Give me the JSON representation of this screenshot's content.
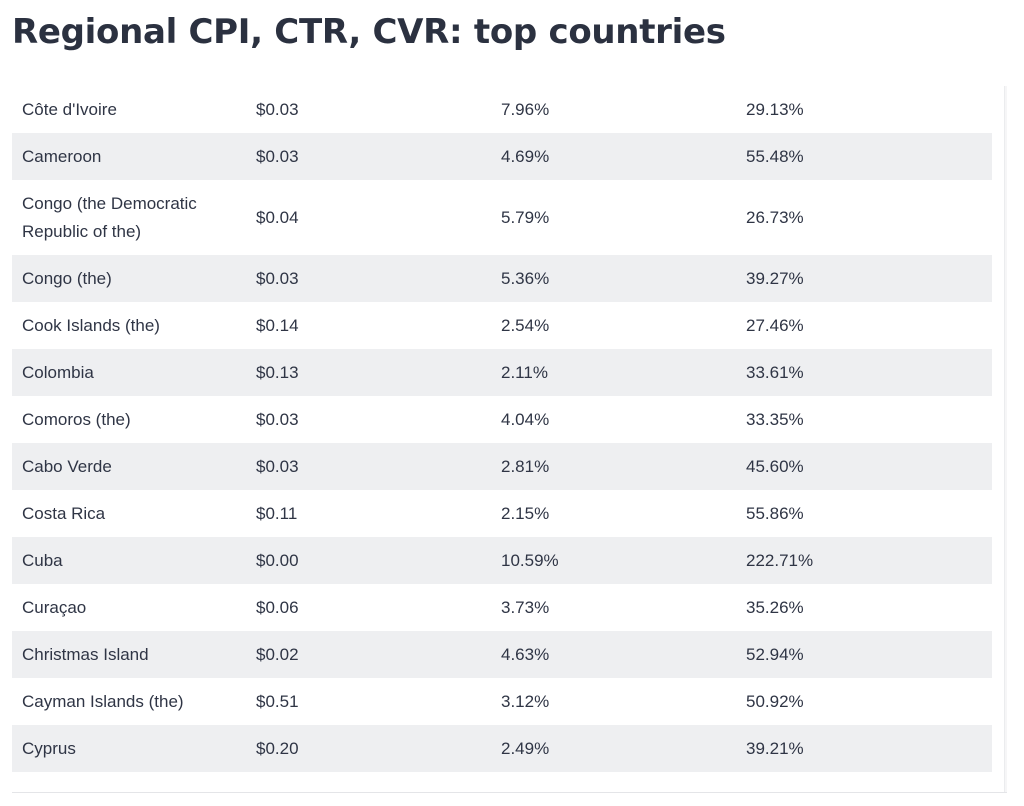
{
  "title": "Regional CPI, CTR, CVR: top countries",
  "rows": [
    {
      "country": "Côte d'Ivoire",
      "cpi": "$0.03",
      "ctr": "7.96%",
      "cvr": "29.13%"
    },
    {
      "country": "Cameroon",
      "cpi": "$0.03",
      "ctr": "4.69%",
      "cvr": "55.48%"
    },
    {
      "country": "Congo (the Democratic Republic of the)",
      "cpi": "$0.04",
      "ctr": "5.79%",
      "cvr": "26.73%"
    },
    {
      "country": "Congo (the)",
      "cpi": "$0.03",
      "ctr": "5.36%",
      "cvr": "39.27%"
    },
    {
      "country": "Cook Islands (the)",
      "cpi": "$0.14",
      "ctr": "2.54%",
      "cvr": "27.46%"
    },
    {
      "country": "Colombia",
      "cpi": "$0.13",
      "ctr": "2.11%",
      "cvr": "33.61%"
    },
    {
      "country": "Comoros (the)",
      "cpi": "$0.03",
      "ctr": "4.04%",
      "cvr": "33.35%"
    },
    {
      "country": "Cabo Verde",
      "cpi": "$0.03",
      "ctr": "2.81%",
      "cvr": "45.60%"
    },
    {
      "country": "Costa Rica",
      "cpi": "$0.11",
      "ctr": "2.15%",
      "cvr": "55.86%"
    },
    {
      "country": "Cuba",
      "cpi": "$0.00",
      "ctr": "10.59%",
      "cvr": "222.71%"
    },
    {
      "country": "Curaçao",
      "cpi": "$0.06",
      "ctr": "3.73%",
      "cvr": "35.26%"
    },
    {
      "country": "Christmas Island",
      "cpi": "$0.02",
      "ctr": "4.63%",
      "cvr": "52.94%"
    },
    {
      "country": "Cayman Islands (the)",
      "cpi": "$0.51",
      "ctr": "3.12%",
      "cvr": "50.92%"
    },
    {
      "country": "Cyprus",
      "cpi": "$0.20",
      "ctr": "2.49%",
      "cvr": "39.21%"
    }
  ]
}
